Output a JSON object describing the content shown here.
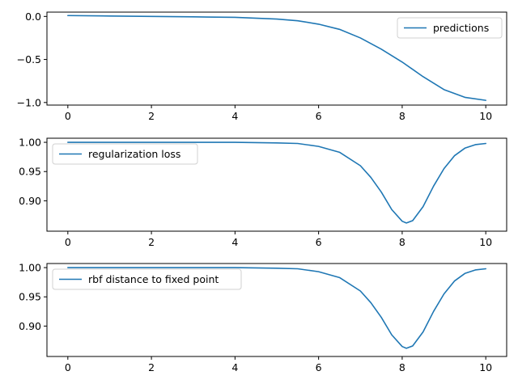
{
  "chart_data": [
    {
      "type": "line",
      "title": "",
      "xlabel": "",
      "ylabel": "",
      "xlim": [
        -0.5,
        10.5
      ],
      "ylim": [
        -1.03,
        0.05
      ],
      "xticks": [
        0,
        2,
        4,
        6,
        8,
        10
      ],
      "xtick_labels": [
        "0",
        "2",
        "4",
        "6",
        "8",
        "10"
      ],
      "yticks": [
        0.0,
        -0.5,
        -1.0
      ],
      "ytick_labels": [
        "0.0",
        "−0.5",
        "−1.0"
      ],
      "legend_position": "top-right",
      "grid": false,
      "series": [
        {
          "name": "predictions",
          "color": "#1f77b4",
          "x": [
            0,
            1,
            2,
            3,
            4,
            5,
            5.5,
            6,
            6.5,
            7,
            7.5,
            8,
            8.5,
            9,
            9.5,
            10
          ],
          "y": [
            0.01,
            0.005,
            0.0,
            -0.005,
            -0.01,
            -0.03,
            -0.05,
            -0.09,
            -0.15,
            -0.25,
            -0.38,
            -0.53,
            -0.7,
            -0.85,
            -0.94,
            -0.975
          ]
        }
      ]
    },
    {
      "type": "line",
      "title": "",
      "xlabel": "",
      "ylabel": "",
      "xlim": [
        -0.5,
        10.5
      ],
      "ylim": [
        0.848,
        1.007
      ],
      "xticks": [
        0,
        2,
        4,
        6,
        8,
        10
      ],
      "xtick_labels": [
        "0",
        "2",
        "4",
        "6",
        "8",
        "10"
      ],
      "yticks": [
        1.0,
        0.95,
        0.9
      ],
      "ytick_labels": [
        "1.00",
        "0.95",
        "0.90"
      ],
      "legend_position": "top-left",
      "grid": false,
      "series": [
        {
          "name": "regularization loss",
          "color": "#1f77b4",
          "x": [
            0,
            1,
            2,
            3,
            4,
            5,
            5.5,
            6,
            6.5,
            7,
            7.25,
            7.5,
            7.75,
            8,
            8.1,
            8.25,
            8.5,
            8.75,
            9,
            9.25,
            9.5,
            9.75,
            10
          ],
          "y": [
            1.0,
            1.0,
            1.0,
            1.0,
            1.0,
            0.999,
            0.998,
            0.993,
            0.983,
            0.96,
            0.94,
            0.915,
            0.885,
            0.865,
            0.862,
            0.866,
            0.89,
            0.925,
            0.955,
            0.977,
            0.99,
            0.996,
            0.998
          ]
        }
      ]
    },
    {
      "type": "line",
      "title": "",
      "xlabel": "",
      "ylabel": "",
      "xlim": [
        -0.5,
        10.5
      ],
      "ylim": [
        0.848,
        1.007
      ],
      "xticks": [
        0,
        2,
        4,
        6,
        8,
        10
      ],
      "xtick_labels": [
        "0",
        "2",
        "4",
        "6",
        "8",
        "10"
      ],
      "yticks": [
        1.0,
        0.95,
        0.9
      ],
      "ytick_labels": [
        "1.00",
        "0.95",
        "0.90"
      ],
      "legend_position": "top-left",
      "grid": false,
      "series": [
        {
          "name": "rbf distance to fixed point",
          "color": "#1f77b4",
          "x": [
            0,
            1,
            2,
            3,
            4,
            5,
            5.5,
            6,
            6.5,
            7,
            7.25,
            7.5,
            7.75,
            8,
            8.1,
            8.25,
            8.5,
            8.75,
            9,
            9.25,
            9.5,
            9.75,
            10
          ],
          "y": [
            1.0,
            1.0,
            1.0,
            1.0,
            1.0,
            0.999,
            0.998,
            0.993,
            0.983,
            0.96,
            0.94,
            0.915,
            0.885,
            0.865,
            0.862,
            0.866,
            0.89,
            0.925,
            0.955,
            0.977,
            0.99,
            0.996,
            0.998
          ]
        }
      ]
    }
  ]
}
